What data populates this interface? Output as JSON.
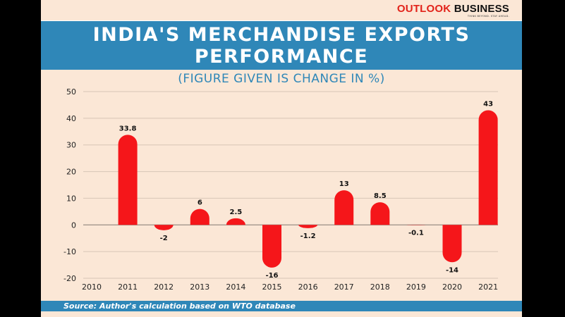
{
  "brand": {
    "name_part1": "OUTLOOK",
    "name_part2": "BUSINESS",
    "tagline": "THINK BEYOND. STAY AHEAD.",
    "accent_color": "#e2231a"
  },
  "header": {
    "title_line1": "INDIA'S MERCHANDISE EXPORTS",
    "title_line2": "PERFORMANCE",
    "subtitle": "(FIGURE GIVEN IS CHANGE IN %)",
    "band_color": "#2f87b8"
  },
  "footer": {
    "source": "Source: Author's calculation based on WTO database"
  },
  "chart_data": {
    "type": "bar",
    "title": "INDIA'S MERCHANDISE EXPORTS PERFORMANCE",
    "subtitle": "(FIGURE GIVEN IS CHANGE IN %)",
    "xlabel": "",
    "ylabel": "",
    "categories": [
      "2010",
      "2011",
      "2012",
      "2013",
      "2014",
      "2015",
      "2016",
      "2017",
      "2018",
      "2019",
      "2020",
      "2021"
    ],
    "values": [
      null,
      33.8,
      -2,
      6,
      2.5,
      -16,
      -1.2,
      13,
      8.5,
      -0.1,
      -14,
      43
    ],
    "data_labels": [
      "",
      "33.8",
      "-2",
      "6",
      "2.5",
      "-16",
      "-1.2",
      "13",
      "8.5",
      "-0.1",
      "-14",
      "43"
    ],
    "ylim": [
      -20,
      50
    ],
    "yticks": [
      -20,
      -10,
      0,
      10,
      20,
      30,
      40,
      50
    ],
    "grid": true,
    "legend": "none",
    "bar_color": "#f5161a"
  }
}
